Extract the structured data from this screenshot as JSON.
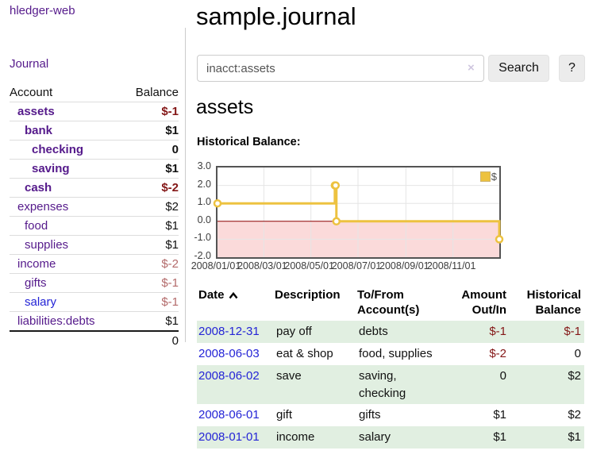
{
  "colors": {
    "purple": "#551a8b",
    "link-blue": "#2424d6",
    "neg-strong": "#841717",
    "neg-soft": "#b36a6a",
    "row-green": "#e1efe1",
    "chart-yellow": "#edc240"
  },
  "sidebar": {
    "brand": "hledger-web",
    "nav": [
      {
        "label": "Journal"
      }
    ],
    "accounts_table": {
      "headers": [
        "Account",
        "Balance"
      ],
      "rows": [
        {
          "name": "assets",
          "depth": 1,
          "balance": "$-1",
          "bold": true,
          "neg": "strong"
        },
        {
          "name": "bank",
          "depth": 2,
          "balance": "$1",
          "bold": true
        },
        {
          "name": "checking",
          "depth": 3,
          "balance": "0",
          "bold": true
        },
        {
          "name": "saving",
          "depth": 3,
          "balance": "$1",
          "bold": true
        },
        {
          "name": "cash",
          "depth": 2,
          "balance": "$-2",
          "bold": true,
          "neg": "strong"
        },
        {
          "name": "expenses",
          "depth": 1,
          "balance": "$2"
        },
        {
          "name": "food",
          "depth": 2,
          "balance": "$1"
        },
        {
          "name": "supplies",
          "depth": 2,
          "balance": "$1"
        },
        {
          "name": "income",
          "depth": 1,
          "balance": "$-2",
          "neg": "soft"
        },
        {
          "name": "gifts",
          "depth": 2,
          "balance": "$-1",
          "neg": "soft"
        },
        {
          "name": "salary",
          "depth": 2,
          "balance": "$-1",
          "neg": "soft",
          "link_color": "blue"
        },
        {
          "name": "liabilities:debts",
          "depth": 1,
          "balance": "$1"
        }
      ],
      "total": "0"
    }
  },
  "header": {
    "title": "sample.journal"
  },
  "search": {
    "value": "inacct:assets",
    "clear_icon": "×",
    "button_label": "Search",
    "help_label": "?"
  },
  "account_page": {
    "title": "assets",
    "chart_label": "Historical Balance:"
  },
  "chart_data": {
    "type": "line",
    "step": true,
    "title": "Historical Balance",
    "series": [
      {
        "name": "$",
        "color": "#edc240",
        "points": [
          [
            "2008-01-01",
            1
          ],
          [
            "2008-06-01",
            2
          ],
          [
            "2008-06-02",
            2
          ],
          [
            "2008-06-03",
            0
          ],
          [
            "2008-12-31",
            -1
          ]
        ]
      }
    ],
    "x_ticks": [
      "2008/01/01",
      "2008/03/01",
      "2008/05/01",
      "2008/07/01",
      "2008/09/01",
      "2008/11/01"
    ],
    "y_ticks": [
      3.0,
      2.0,
      1.0,
      0.0,
      -1.0,
      -2.0
    ],
    "xlim": [
      "2008-01-01",
      "2008-12-31"
    ],
    "ylim": [
      -2,
      3
    ],
    "grid": true,
    "negative_region_color": "#fbdada",
    "zero_line_color": "#8b0000",
    "legend": {
      "label": "$",
      "position": "top-right"
    }
  },
  "register": {
    "headers": [
      "Date",
      "Description",
      "To/From Account(s)",
      "Amount Out/In",
      "Historical Balance"
    ],
    "sort": {
      "column": "Date",
      "direction": "asc"
    },
    "rows": [
      {
        "date": "2008-12-31",
        "description": "pay off",
        "accounts": "debts",
        "amount": "$-1",
        "balance": "$-1",
        "amount_neg": true,
        "balance_neg": true
      },
      {
        "date": "2008-06-03",
        "description": "eat & shop",
        "accounts": "food, supplies",
        "amount": "$-2",
        "balance": "0",
        "amount_neg": true
      },
      {
        "date": "2008-06-02",
        "description": "save",
        "accounts": "saving, checking",
        "amount": "0",
        "balance": "$2"
      },
      {
        "date": "2008-06-01",
        "description": "gift",
        "accounts": "gifts",
        "amount": "$1",
        "balance": "$2"
      },
      {
        "date": "2008-01-01",
        "description": "income",
        "accounts": "salary",
        "amount": "$1",
        "balance": "$1"
      }
    ]
  }
}
